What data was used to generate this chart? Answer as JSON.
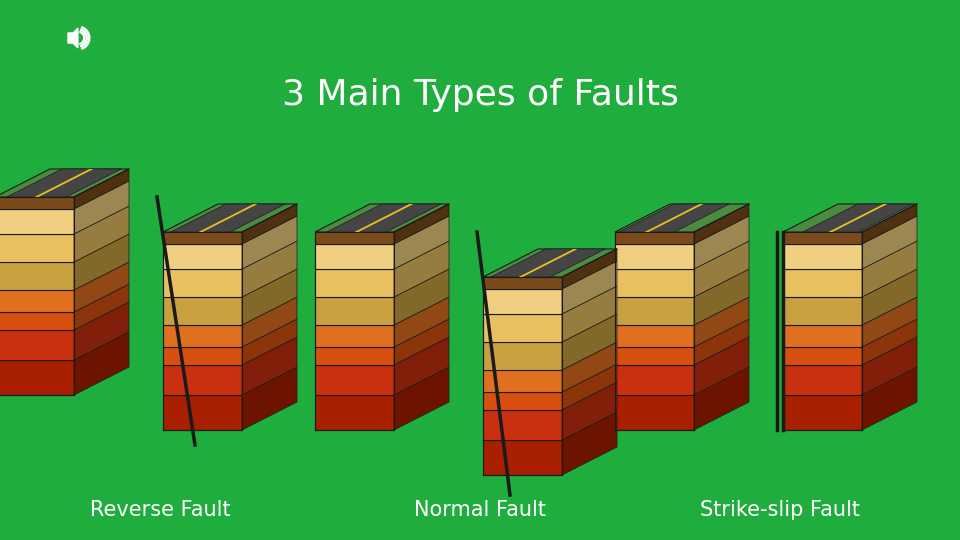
{
  "background_color": "#1FAD3E",
  "title": "3 Main Types of Faults",
  "title_color": "white",
  "title_fontsize": 26,
  "labels": [
    "Reverse Fault",
    "Normal Fault",
    "Strike-slip Fault"
  ],
  "label_color": "white",
  "label_fontsize": 15,
  "layers": {
    "green_grass": "#4A8C3F",
    "green_light": "#7AB648",
    "brown_road": "#505050",
    "brown_dark": "#7B4A1A",
    "tan1": "#C8A040",
    "tan2": "#E8C060",
    "tan3": "#F0D080",
    "orange1": "#E07020",
    "orange2": "#D85010",
    "red1": "#C83010",
    "red2": "#A82000"
  },
  "fault_color": "#1A1A1A",
  "outline_color": "#1A1A1A"
}
